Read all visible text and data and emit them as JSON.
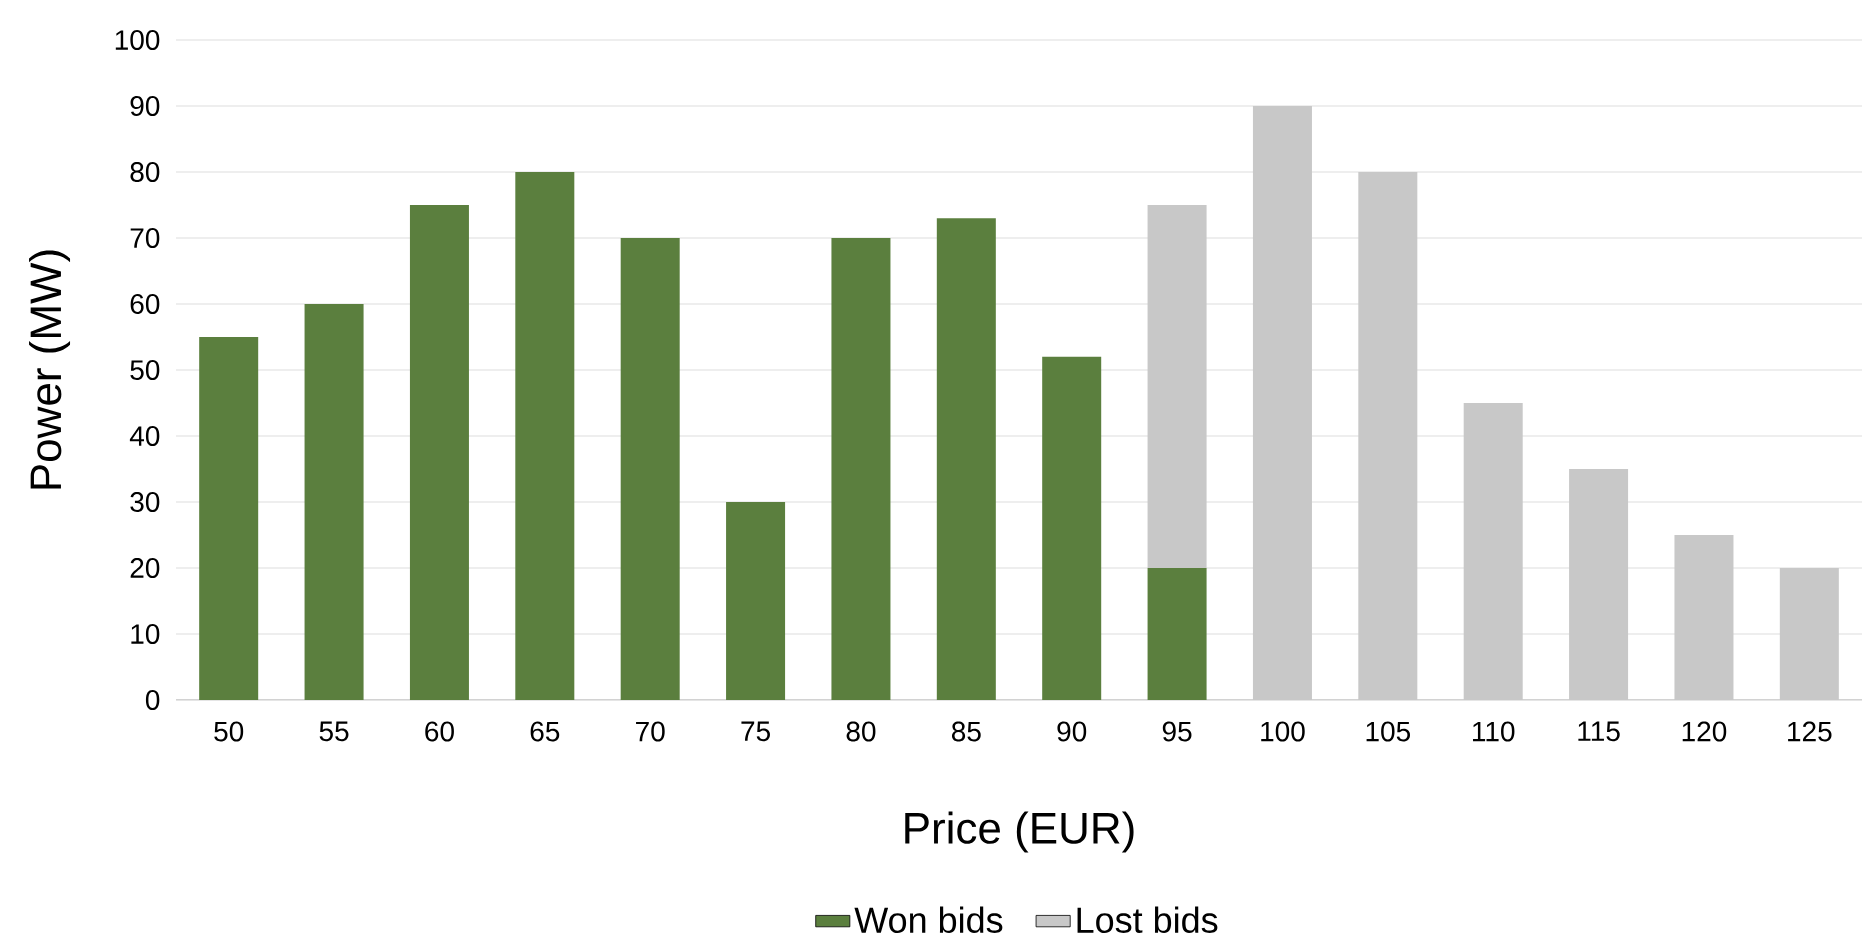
{
  "chart_data": {
    "type": "bar",
    "stacked": true,
    "xlabel": "Price (EUR)",
    "ylabel": "Power (MW)",
    "categories": [
      "50",
      "55",
      "60",
      "65",
      "70",
      "75",
      "80",
      "85",
      "90",
      "95",
      "100",
      "105",
      "110",
      "115",
      "120",
      "125"
    ],
    "series": [
      {
        "name": "Won bids",
        "color": "#5b7f3e",
        "values": [
          55,
          60,
          75,
          80,
          70,
          30,
          70,
          73,
          52,
          20,
          null,
          null,
          null,
          null,
          null,
          null
        ]
      },
      {
        "name": "Lost bids",
        "color": "#c8c8c8",
        "values": [
          null,
          null,
          null,
          null,
          null,
          null,
          null,
          null,
          null,
          55,
          90,
          80,
          45,
          35,
          25,
          20
        ]
      }
    ],
    "ylim": [
      0,
      100
    ],
    "yticks": [
      0,
      10,
      20,
      30,
      40,
      50,
      60,
      70,
      80,
      90,
      100
    ],
    "grid": "y",
    "legend": "bottom"
  }
}
